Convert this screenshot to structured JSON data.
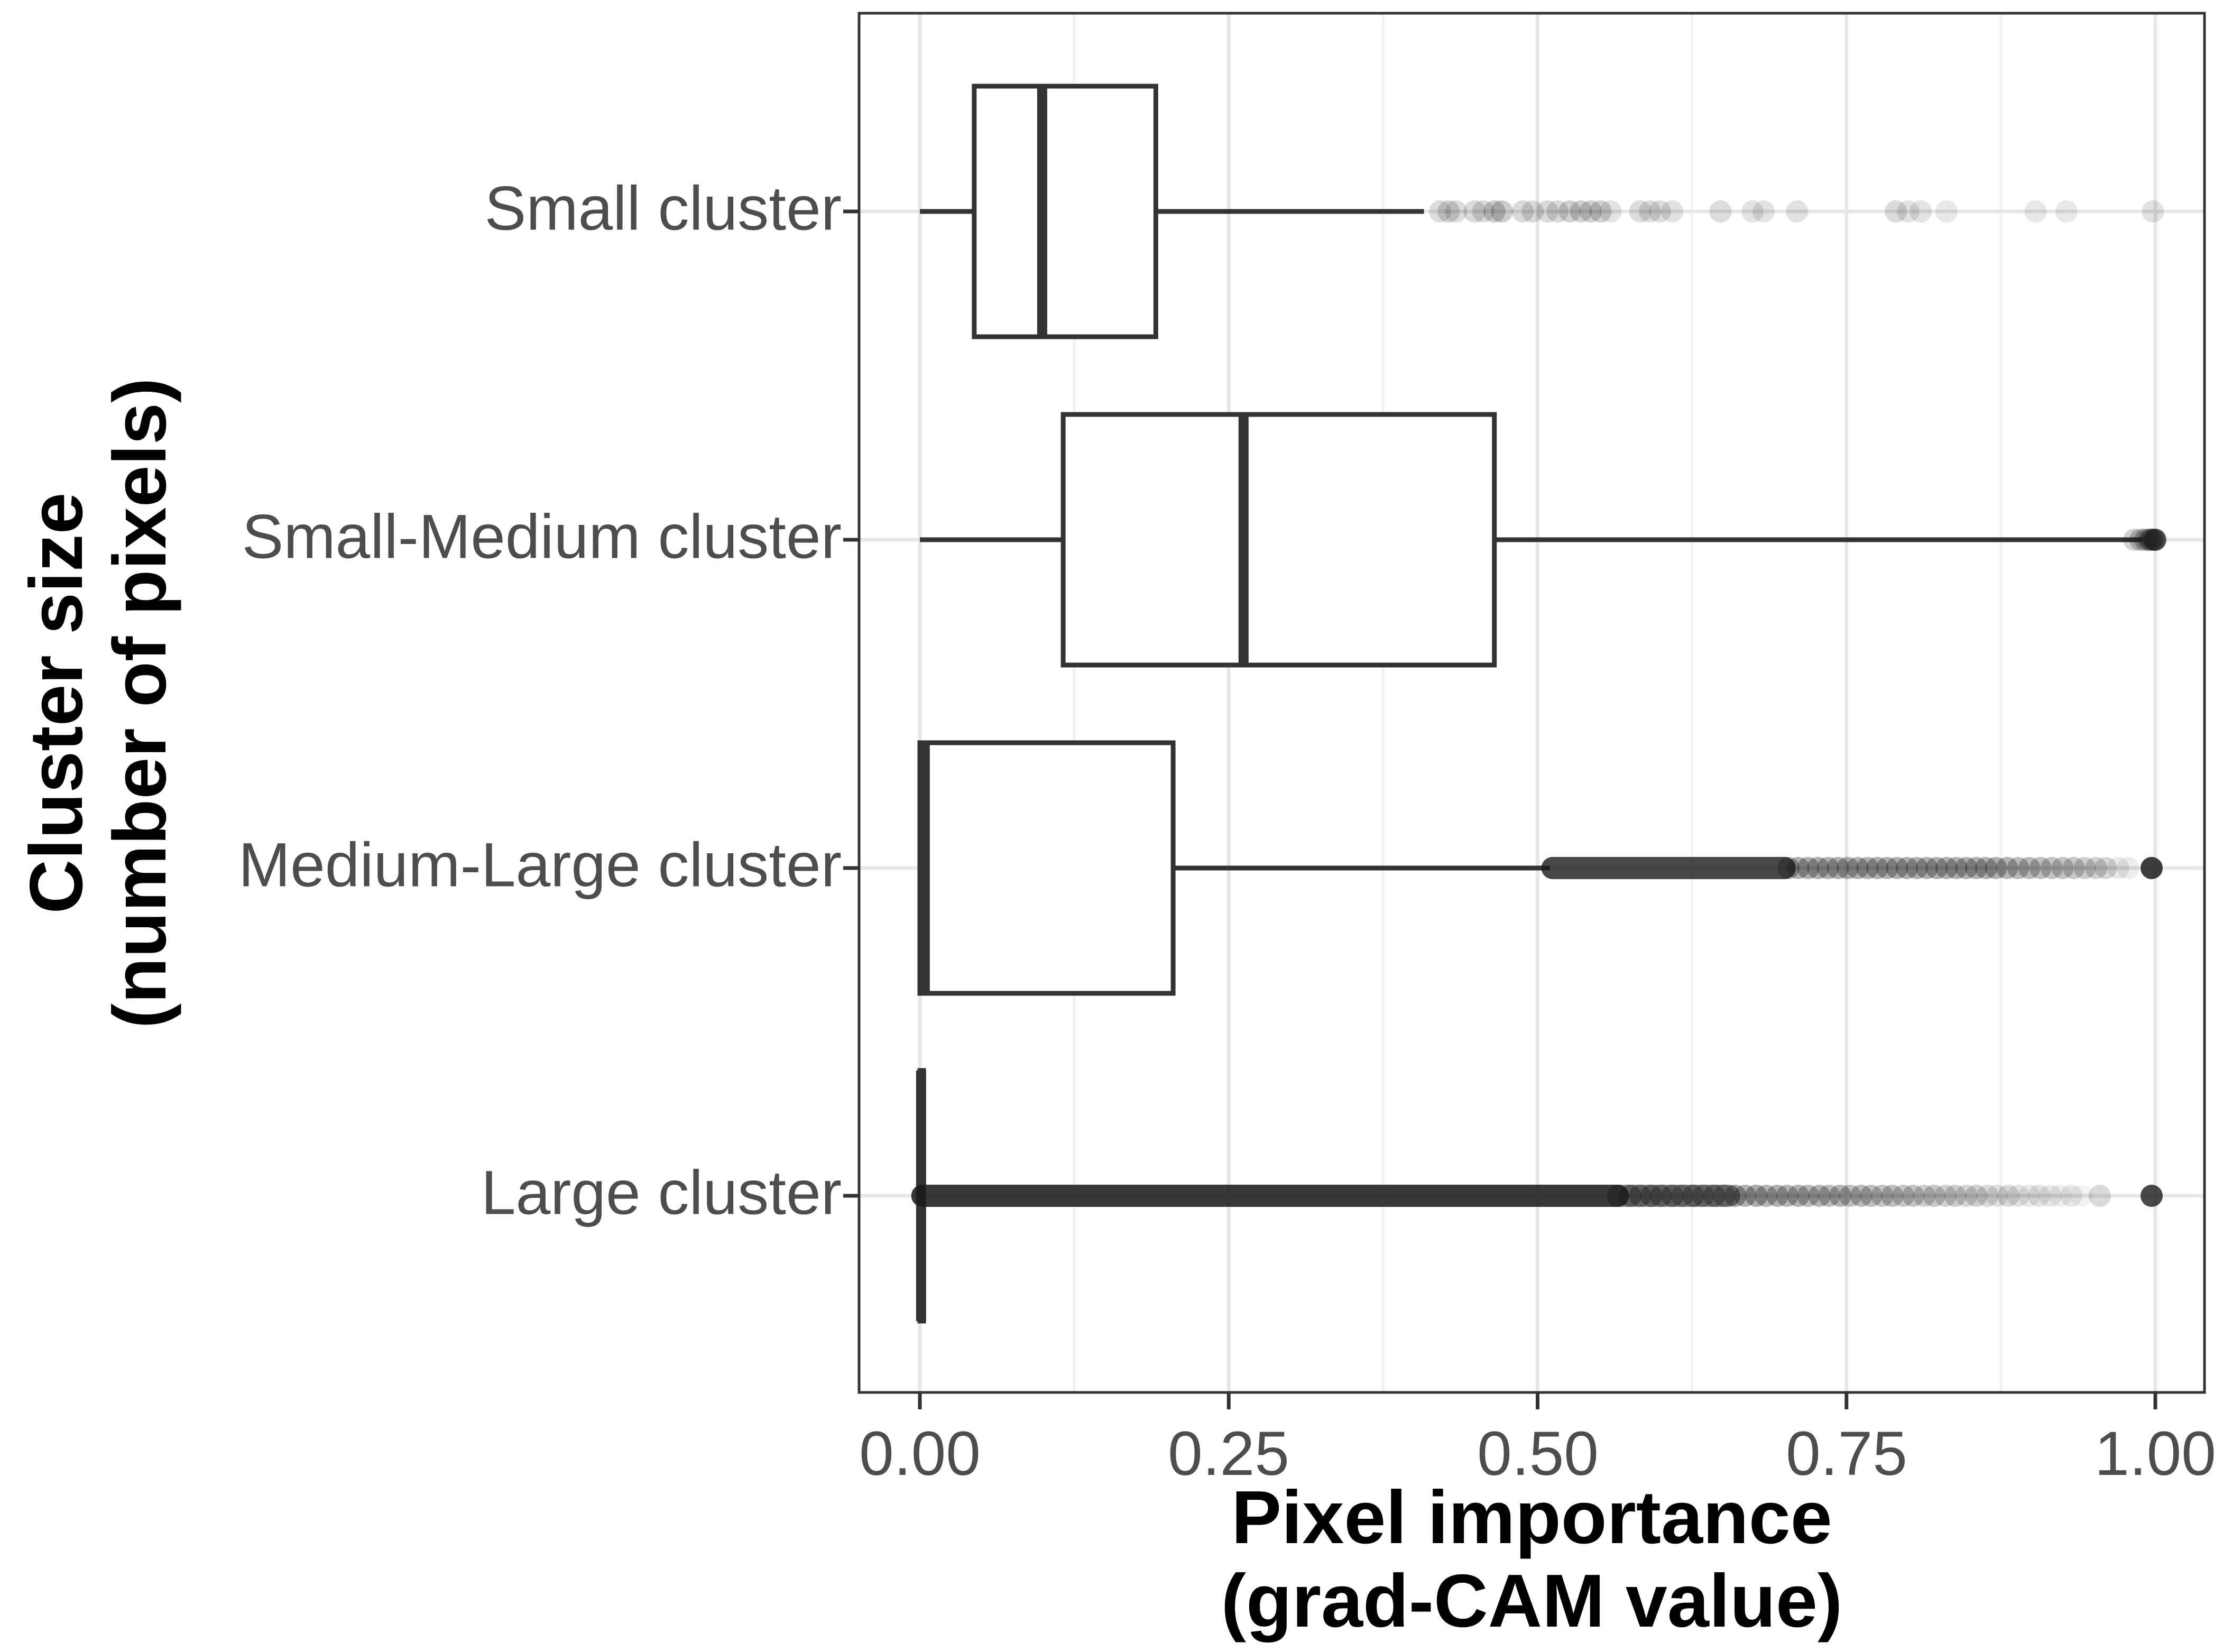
{
  "figure": {
    "background": "#ffffff"
  },
  "style": {
    "ink": "#333333",
    "box_fill": "#ffffff",
    "point_color": "#1a1a1a",
    "grid_major": "#e7e7e7",
    "grid_minor": "#f2f2f2",
    "tick_label_color": "#4d4d4d",
    "axis_title_color": "#000000"
  },
  "axes": {
    "x": {
      "title_lines": [
        "Pixel importance",
        "(grad-CAM value)"
      ],
      "tick_labels": [
        "0.00",
        "0.25",
        "0.50",
        "0.75",
        "1.00"
      ],
      "tick_values": [
        0,
        0.25,
        0.5,
        0.75,
        1
      ],
      "minor_tick_values": [
        0.125,
        0.375,
        0.625,
        0.875
      ],
      "domain": [
        0,
        1
      ]
    },
    "y": {
      "title_lines": [
        "Cluster size",
        "(number of pixels)"
      ],
      "categories": [
        "Small cluster",
        "Small-Medium cluster",
        "Medium-Large cluster",
        "Large cluster"
      ]
    }
  },
  "chart_data": {
    "type": "boxplot",
    "orientation": "horizontal",
    "title": "",
    "xlabel": "Pixel importance (grad-CAM value)",
    "ylabel": "Cluster size (number of pixels)",
    "xlim": [
      0,
      1
    ],
    "grid": "vertical major at 0/0.25/0.50/0.75/1.00, vertical minor at 0.125 steps, horizontal major per category",
    "legend": "none",
    "categories": [
      "Small cluster",
      "Small-Medium cluster",
      "Medium-Large cluster",
      "Large cluster"
    ],
    "series": [
      {
        "name": "Small cluster",
        "stats": {
          "whisker_min": 0.0,
          "q1": 0.044,
          "median": 0.099,
          "q3": 0.191,
          "whisker_max": 0.408
        },
        "outlier_bands": [],
        "outliers": [
          [
            0.421,
            0.15
          ],
          [
            0.428,
            0.18
          ],
          [
            0.434,
            0.15
          ],
          [
            0.449,
            0.16
          ],
          [
            0.456,
            0.16
          ],
          [
            0.465,
            0.22
          ],
          [
            0.471,
            0.22
          ],
          [
            0.488,
            0.16
          ],
          [
            0.496,
            0.16
          ],
          [
            0.508,
            0.16
          ],
          [
            0.516,
            0.16
          ],
          [
            0.526,
            0.2
          ],
          [
            0.535,
            0.2
          ],
          [
            0.543,
            0.2
          ],
          [
            0.551,
            0.2
          ],
          [
            0.559,
            0.12
          ],
          [
            0.583,
            0.15
          ],
          [
            0.591,
            0.15
          ],
          [
            0.599,
            0.15
          ],
          [
            0.609,
            0.13
          ],
          [
            0.648,
            0.15
          ],
          [
            0.674,
            0.12
          ],
          [
            0.683,
            0.12
          ],
          [
            0.71,
            0.13
          ],
          [
            0.79,
            0.16
          ],
          [
            0.8,
            0.12
          ],
          [
            0.81,
            0.12
          ],
          [
            0.831,
            0.1
          ],
          [
            0.903,
            0.1
          ],
          [
            0.928,
            0.1
          ],
          [
            0.998,
            0.13
          ]
        ]
      },
      {
        "name": "Small-Medium cluster",
        "stats": {
          "whisker_min": 0.0,
          "q1": 0.116,
          "median": 0.262,
          "q3": 0.465,
          "whisker_max": 0.99
        },
        "outlier_bands": [],
        "outliers": [
          [
            0.983,
            0.2
          ],
          [
            0.988,
            0.25
          ],
          [
            0.992,
            0.3
          ],
          [
            0.995,
            0.35
          ],
          [
            0.997,
            0.4
          ],
          [
            0.999,
            0.45
          ],
          [
            1.0,
            0.45
          ],
          [
            1.0,
            0.4
          ]
        ]
      },
      {
        "name": "Medium-Large cluster",
        "stats": {
          "whisker_min": 0.0,
          "q1": 0.0,
          "median": 0.004,
          "q3": 0.205,
          "whisker_max": 0.51
        },
        "outlier_bands": [
          [
            0.512,
            0.7,
            0.8
          ]
        ],
        "outliers": [
          [
            0.703,
            0.35
          ],
          [
            0.711,
            0.35
          ],
          [
            0.719,
            0.35
          ],
          [
            0.727,
            0.35
          ],
          [
            0.735,
            0.35
          ],
          [
            0.743,
            0.35
          ],
          [
            0.751,
            0.35
          ],
          [
            0.759,
            0.35
          ],
          [
            0.767,
            0.35
          ],
          [
            0.775,
            0.35
          ],
          [
            0.783,
            0.35
          ],
          [
            0.791,
            0.35
          ],
          [
            0.799,
            0.35
          ],
          [
            0.807,
            0.35
          ],
          [
            0.815,
            0.35
          ],
          [
            0.823,
            0.35
          ],
          [
            0.831,
            0.35
          ],
          [
            0.839,
            0.35
          ],
          [
            0.847,
            0.35
          ],
          [
            0.855,
            0.35
          ],
          [
            0.863,
            0.35
          ],
          [
            0.871,
            0.35
          ],
          [
            0.88,
            0.32
          ],
          [
            0.889,
            0.3
          ],
          [
            0.898,
            0.3
          ],
          [
            0.907,
            0.28
          ],
          [
            0.916,
            0.26
          ],
          [
            0.925,
            0.26
          ],
          [
            0.934,
            0.24
          ],
          [
            0.943,
            0.22
          ],
          [
            0.952,
            0.2
          ],
          [
            0.96,
            0.18
          ],
          [
            0.97,
            0.1
          ],
          [
            0.978,
            0.08
          ],
          [
            0.997,
            0.85
          ]
        ]
      },
      {
        "name": "Large cluster",
        "stats": {
          "whisker_min": 0.0,
          "q1": 0.0,
          "median": 0.001,
          "q3": 0.003,
          "whisker_max": 0.003
        },
        "outlier_bands": [
          [
            0.002,
            0.565,
            0.87
          ],
          [
            0.565,
            0.655,
            0.5
          ]
        ],
        "outliers": [
          [
            0.575,
            0.45
          ],
          [
            0.583,
            0.4
          ],
          [
            0.592,
            0.45
          ],
          [
            0.6,
            0.4
          ],
          [
            0.609,
            0.42
          ],
          [
            0.617,
            0.38
          ],
          [
            0.626,
            0.42
          ],
          [
            0.634,
            0.36
          ],
          [
            0.643,
            0.4
          ],
          [
            0.651,
            0.36
          ],
          [
            0.66,
            0.38
          ],
          [
            0.668,
            0.34
          ],
          [
            0.677,
            0.36
          ],
          [
            0.685,
            0.32
          ],
          [
            0.694,
            0.34
          ],
          [
            0.702,
            0.32
          ],
          [
            0.711,
            0.34
          ],
          [
            0.719,
            0.3
          ],
          [
            0.728,
            0.32
          ],
          [
            0.736,
            0.3
          ],
          [
            0.745,
            0.32
          ],
          [
            0.753,
            0.28
          ],
          [
            0.762,
            0.3
          ],
          [
            0.77,
            0.28
          ],
          [
            0.779,
            0.26
          ],
          [
            0.787,
            0.28
          ],
          [
            0.796,
            0.24
          ],
          [
            0.804,
            0.26
          ],
          [
            0.813,
            0.22
          ],
          [
            0.821,
            0.24
          ],
          [
            0.83,
            0.2
          ],
          [
            0.838,
            0.22
          ],
          [
            0.847,
            0.18
          ],
          [
            0.855,
            0.2
          ],
          [
            0.864,
            0.16
          ],
          [
            0.872,
            0.14
          ],
          [
            0.881,
            0.16
          ],
          [
            0.889,
            0.12
          ],
          [
            0.898,
            0.1
          ],
          [
            0.906,
            0.12
          ],
          [
            0.915,
            0.1
          ],
          [
            0.923,
            0.08
          ],
          [
            0.932,
            0.1
          ],
          [
            0.94,
            0.06
          ],
          [
            0.955,
            0.16
          ],
          [
            0.997,
            0.8
          ]
        ]
      }
    ]
  }
}
